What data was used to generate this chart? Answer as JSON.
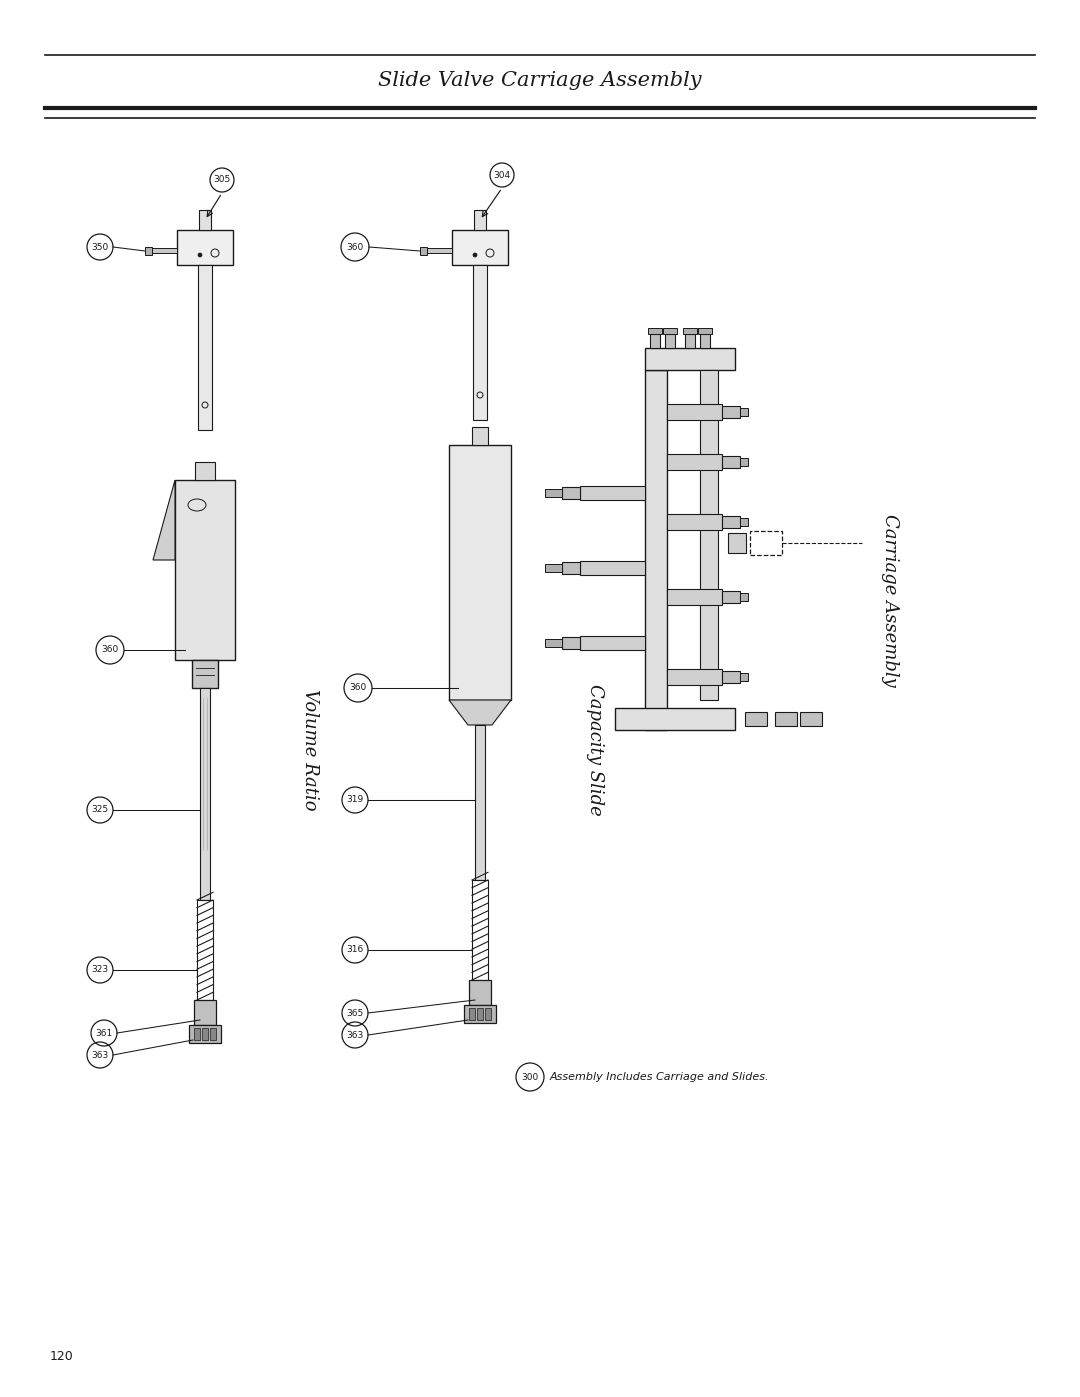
{
  "title": "Slide Valve Carriage Assembly",
  "page_number": "120",
  "bg": "#ffffff",
  "lc": "#1a1a1a",
  "title_fontsize": 15,
  "section_labels": {
    "volume_ratio": "Volume Ratio",
    "capacity_slide": "Capacity Slide",
    "carriage_assembly": "Carriage Assembly"
  },
  "note_text": "Assembly Includes Carriage and Slides.",
  "note_part": "300",
  "vr_parts": [
    "305",
    "350",
    "360",
    "325",
    "323",
    "361",
    "363"
  ],
  "cs_parts": [
    "304",
    "360",
    "319",
    "316",
    "365",
    "363"
  ],
  "ca_parts": [
    "300"
  ]
}
